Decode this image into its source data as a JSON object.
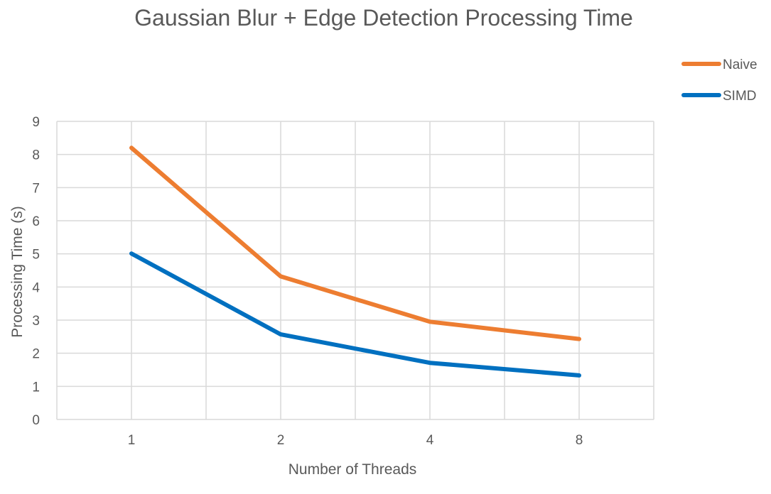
{
  "chart_data": {
    "type": "line",
    "title": "Gaussian Blur + Edge Detection Processing Time",
    "xlabel": "Number of Threads",
    "ylabel": "Processing Time (s)",
    "categories": [
      "1",
      "2",
      "4",
      "8"
    ],
    "ylim": [
      0,
      9
    ],
    "yticks": [
      "0",
      "1",
      "2",
      "3",
      "4",
      "5",
      "6",
      "7",
      "8",
      "9"
    ],
    "grid": true,
    "legend_position": "top-right",
    "series": [
      {
        "name": "Naive",
        "values": [
          8.2,
          4.32,
          2.95,
          2.43
        ],
        "color": "#ED7D31"
      },
      {
        "name": "SIMD",
        "values": [
          5.01,
          2.57,
          1.71,
          1.33
        ],
        "color": "#0070C0"
      }
    ]
  }
}
